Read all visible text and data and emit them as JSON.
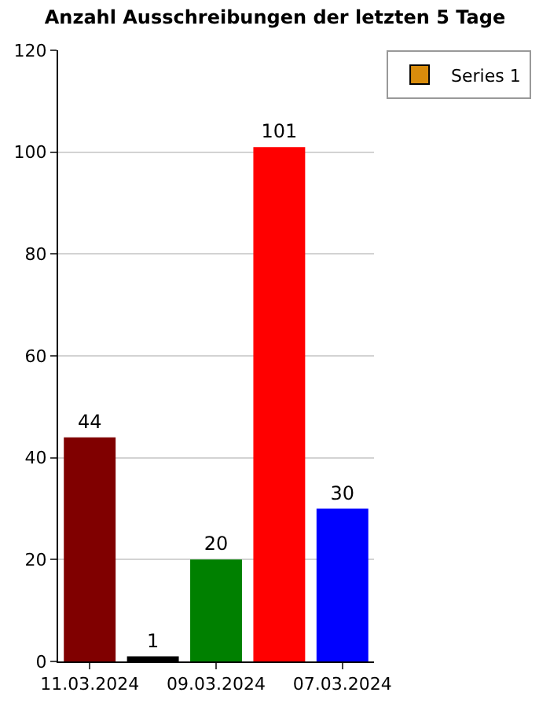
{
  "chart_data": {
    "type": "bar",
    "title": "Anzahl Ausschreibungen der letzten 5 Tage",
    "categories": [
      "11.03.2024",
      null,
      "09.03.2024",
      null,
      "07.03.2024"
    ],
    "series": [
      {
        "name": "Series 1",
        "color": "#d98c0c",
        "colors": [
          "#800000",
          "#000000",
          "#008000",
          "#ff0000",
          "#0000ff"
        ],
        "values": [
          44,
          1,
          20,
          101,
          30
        ]
      }
    ],
    "ylim": [
      0,
      120
    ],
    "yticks": [
      0,
      20,
      40,
      60,
      80,
      100,
      120
    ],
    "grid": "y",
    "legend": "top right",
    "data_labels": true
  }
}
